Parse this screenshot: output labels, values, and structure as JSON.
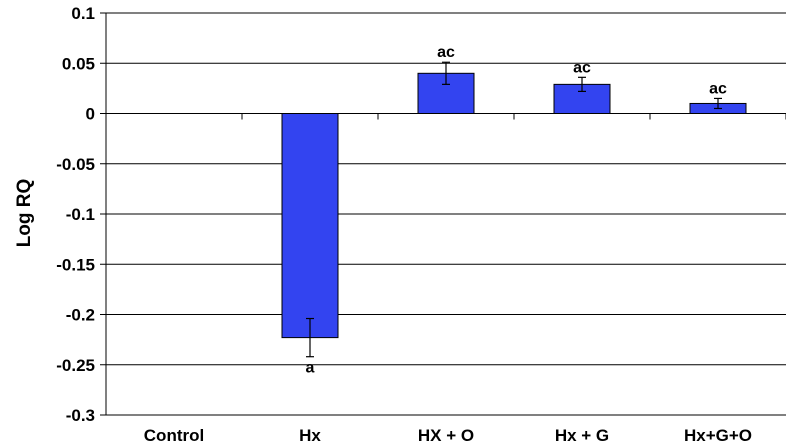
{
  "chart_data": {
    "type": "bar",
    "title": "",
    "xlabel": "",
    "ylabel": "Log RQ",
    "ylim": [
      -0.3,
      0.1
    ],
    "yticks": [
      0.1,
      0.05,
      0,
      -0.05,
      -0.1,
      -0.15,
      -0.2,
      -0.25,
      -0.3
    ],
    "ytick_labels": [
      "0.1",
      "0.05",
      "0",
      "-0.05",
      "-0.1",
      "-0.15",
      "-0.2",
      "-0.25",
      "-0.3"
    ],
    "categories": [
      "Control",
      "Hx",
      "HX + O",
      "Hx  + G",
      "Hx+G+O"
    ],
    "values": [
      0,
      -0.223,
      0.04,
      0.029,
      0.01
    ],
    "errors": [
      0,
      0.019,
      0.011,
      0.007,
      0.005
    ],
    "annotations": [
      "",
      "a",
      "ac",
      "ac",
      "ac"
    ],
    "grid": true,
    "legend": "none",
    "bar_color": "#3344f0"
  }
}
